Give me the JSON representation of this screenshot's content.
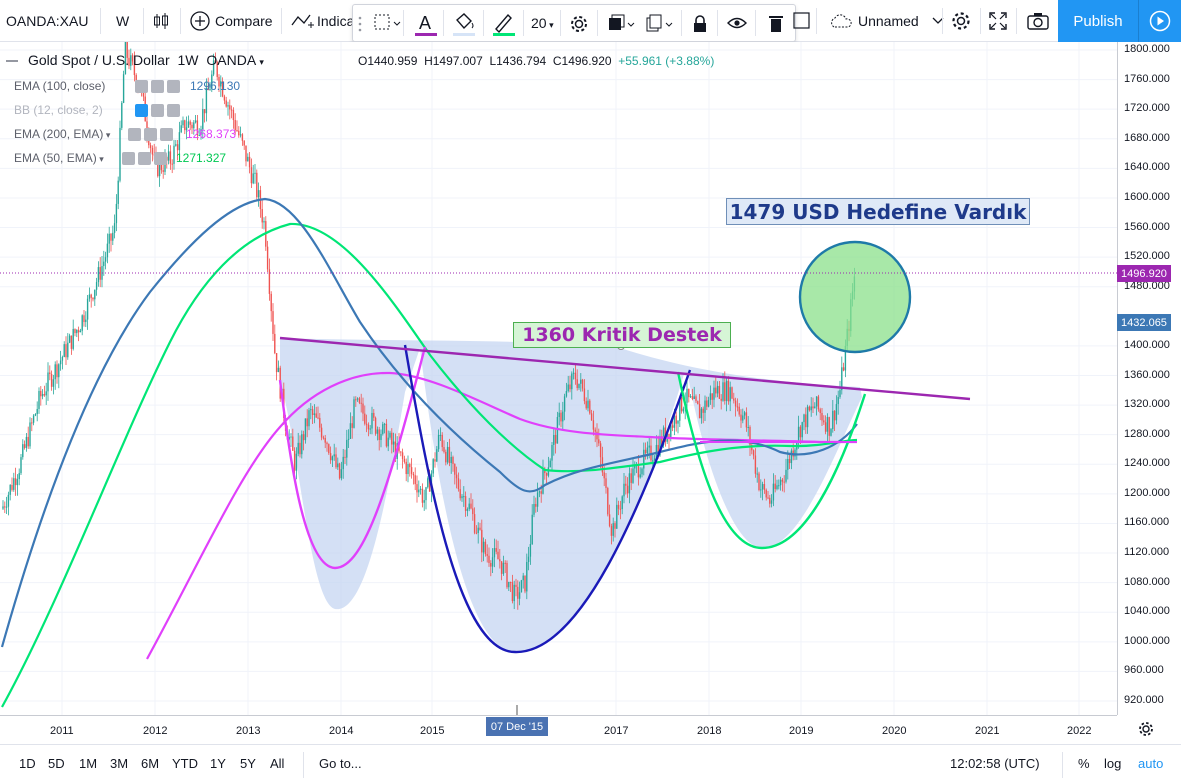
{
  "toolbar": {
    "symbol": "OANDA:XAU",
    "interval": "W",
    "compare_label": "Compare",
    "indicators_label": "Indica",
    "font_size": "20",
    "layout_name": "Unnamed",
    "publish_label": "Publish"
  },
  "legend": {
    "title": "Gold Spot / U.S. Dollar",
    "interval": "1W",
    "broker": "OANDA",
    "open": "O1440.959",
    "high": "H1497.007",
    "low": "L1436.794",
    "close": "C1496.920",
    "change": "+55.961 (+3.88%)",
    "indicators": [
      {
        "label": "EMA (100, close)",
        "value": "1296.130",
        "color": "#3c78b5"
      },
      {
        "label": "BB (12, close, 2)",
        "value": "",
        "color": "#3c78b5"
      },
      {
        "label": "EMA (200, EMA)",
        "value": "1268.373",
        "color": "#e040fb"
      },
      {
        "label": "EMA (50, EMA)",
        "value": "1271.327",
        "color": "#00c853"
      }
    ]
  },
  "annotations": {
    "target": "1479 USD Hedefine Vardık",
    "support": "1360 Kritik Destek"
  },
  "price_axis": {
    "ticks": [
      "1800.000",
      "1760.000",
      "1720.000",
      "1680.000",
      "1640.000",
      "1600.000",
      "1560.000",
      "1520.000",
      "1480.000",
      "1400.000",
      "1360.000",
      "1320.000",
      "1280.000",
      "1240.000",
      "1200.000",
      "1160.000",
      "1120.000",
      "1080.000",
      "1040.000",
      "1000.000",
      "960.000",
      "920.000"
    ],
    "current_price": "1496.920",
    "ema_price": "1432.065"
  },
  "time_axis": {
    "ticks": [
      "2011",
      "2012",
      "2013",
      "2014",
      "2015",
      "2017",
      "2018",
      "2019",
      "2020",
      "2021",
      "2022"
    ],
    "cursor_date": "07 Dec '15"
  },
  "bottom": {
    "ranges": [
      "1D",
      "5D",
      "1M",
      "3M",
      "6M",
      "YTD",
      "1Y",
      "5Y",
      "All"
    ],
    "goto": "Go to...",
    "clock": "12:02:58 (UTC)",
    "percent": "%",
    "log": "log",
    "auto": "auto"
  },
  "colors": {
    "accent": "#2196f3",
    "up": "#26a69a",
    "down": "#ef5350",
    "purple_line": "#9c27b0",
    "ema200": "#e040fb",
    "ema50": "#00e676",
    "ema100": "#3c78b5",
    "cup": "#1a1ab8"
  }
}
